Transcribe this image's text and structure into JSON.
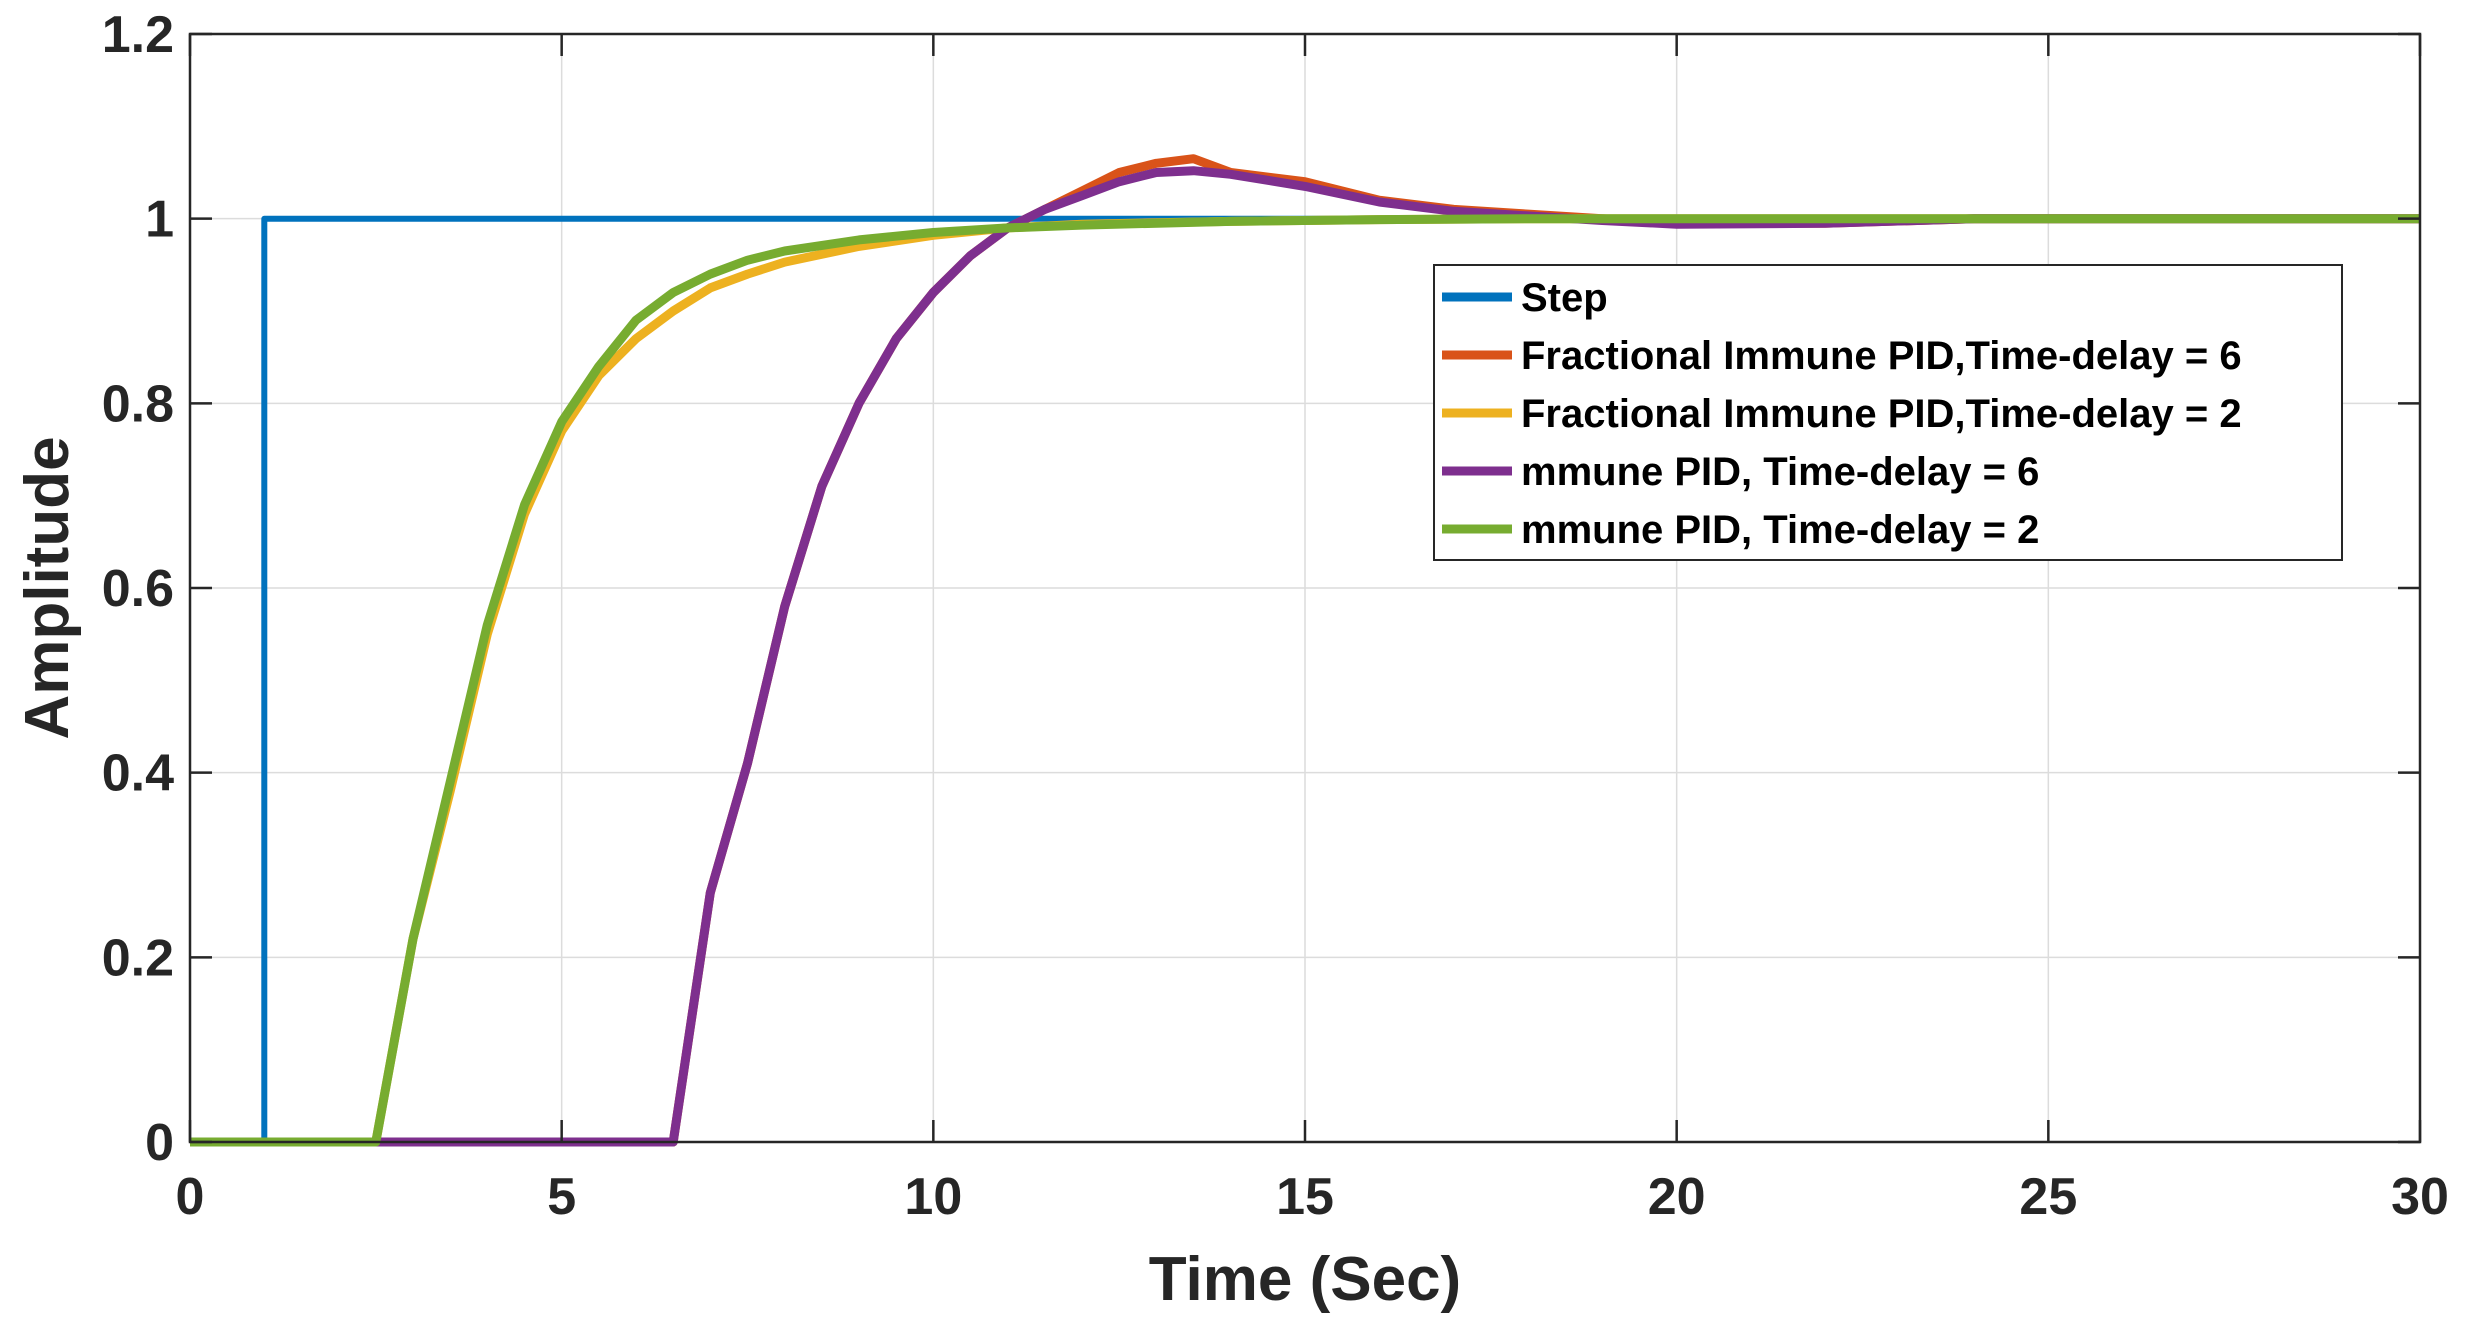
{
  "chart_data": {
    "type": "line",
    "title": "",
    "xlabel": "Time (Sec)",
    "ylabel": "Amplitude",
    "xlim": [
      0,
      30
    ],
    "ylim": [
      0,
      1.2
    ],
    "xticks": [
      0,
      5,
      10,
      15,
      20,
      25,
      30
    ],
    "xtick_labels": [
      "0",
      "5",
      "10",
      "15",
      "20",
      "25",
      "30"
    ],
    "yticks": [
      0,
      0.2,
      0.4,
      0.6,
      0.8,
      1,
      1.2
    ],
    "ytick_labels": [
      "0",
      "0.2",
      "0.4",
      "0.6",
      "0.8",
      "1",
      "1.2"
    ],
    "grid": true,
    "legend_position": "upper-right",
    "series": [
      {
        "name": "Step",
        "color": "#0072BD",
        "x": [
          0,
          1,
          1,
          30
        ],
        "y": [
          0,
          0,
          1,
          1
        ]
      },
      {
        "name": "Fractional Immune PID,Time-delay = 6",
        "color": "#D95319",
        "x": [
          0,
          6.5,
          7,
          7.5,
          8,
          8.5,
          9,
          9.5,
          10,
          10.5,
          11,
          11.5,
          12,
          12.5,
          13,
          13.5,
          14,
          15,
          16,
          17,
          18,
          19,
          20,
          22,
          24,
          26,
          28,
          30
        ],
        "y": [
          0,
          0,
          0.27,
          0.41,
          0.58,
          0.71,
          0.8,
          0.87,
          0.92,
          0.96,
          0.99,
          1.01,
          1.03,
          1.05,
          1.06,
          1.065,
          1.05,
          1.04,
          1.02,
          1.01,
          1.005,
          1.0,
          0.995,
          0.995,
          1.0,
          1.0,
          1.0,
          1.0
        ]
      },
      {
        "name": "Fractional Immune PID,Time-delay = 2",
        "color": "#EDB120",
        "x": [
          0,
          2.5,
          3,
          3.5,
          4,
          4.5,
          5,
          5.5,
          6,
          6.5,
          7,
          7.5,
          8,
          9,
          10,
          11,
          12,
          14,
          16,
          18,
          20,
          25,
          30
        ],
        "y": [
          0,
          0,
          0.22,
          0.38,
          0.55,
          0.68,
          0.77,
          0.83,
          0.87,
          0.9,
          0.925,
          0.94,
          0.953,
          0.97,
          0.982,
          0.99,
          0.994,
          0.997,
          0.999,
          1.0,
          1.0,
          1.0,
          1.0
        ]
      },
      {
        "name": "mmune PID, Time-delay = 6",
        "color": "#7E2F8E",
        "x": [
          0,
          6.5,
          7,
          7.5,
          8,
          8.5,
          9,
          9.5,
          10,
          10.5,
          11,
          11.5,
          12,
          12.5,
          13,
          13.5,
          14,
          15,
          16,
          17,
          18,
          19,
          20,
          22,
          24,
          26,
          28,
          30
        ],
        "y": [
          0,
          0,
          0.27,
          0.41,
          0.58,
          0.71,
          0.8,
          0.87,
          0.92,
          0.96,
          0.99,
          1.01,
          1.025,
          1.04,
          1.05,
          1.052,
          1.048,
          1.035,
          1.018,
          1.008,
          1.003,
          0.998,
          0.994,
          0.995,
          1.0,
          1.0,
          1.0,
          1.0
        ]
      },
      {
        "name": "mmune PID, Time-delay = 2",
        "color": "#77AC30",
        "x": [
          0,
          2.5,
          3,
          3.5,
          4,
          4.5,
          5,
          5.5,
          6,
          6.5,
          7,
          7.5,
          8,
          9,
          10,
          11,
          12,
          14,
          16,
          18,
          20,
          25,
          30
        ],
        "y": [
          0,
          0,
          0.22,
          0.39,
          0.56,
          0.69,
          0.78,
          0.84,
          0.89,
          0.92,
          0.94,
          0.955,
          0.965,
          0.977,
          0.985,
          0.99,
          0.993,
          0.997,
          0.999,
          1.0,
          1.0,
          1.0,
          1.0
        ]
      }
    ]
  }
}
